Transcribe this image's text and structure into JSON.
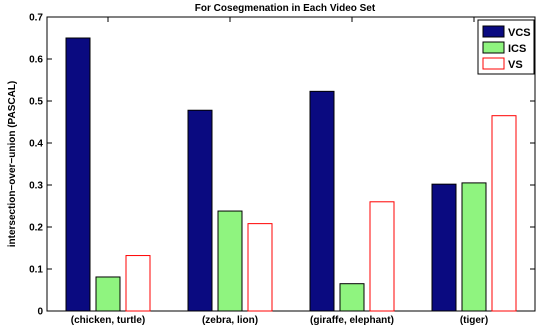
{
  "chart_data": {
    "type": "bar",
    "title": "For Cosegmenation in Each Video Set",
    "ylabel": "intersection−over−union (PASCAL)",
    "xlabel": "",
    "categories": [
      "(chicken, turtle)",
      "(zebra, lion)",
      "(giraffe, elephant)",
      "(tiger)"
    ],
    "series": [
      {
        "name": "VCS",
        "values": [
          0.65,
          0.478,
          0.523,
          0.302
        ],
        "color": "#0a0a80",
        "fill": true
      },
      {
        "name": "ICS",
        "values": [
          0.081,
          0.238,
          0.065,
          0.305
        ],
        "color": "#8ff47f",
        "fill": true
      },
      {
        "name": "VS",
        "values": [
          0.132,
          0.208,
          0.26,
          0.465
        ],
        "color": "#ff0000",
        "fill": false
      }
    ],
    "ylim": [
      0,
      0.7
    ],
    "yticks": [
      "0",
      "0.1",
      "0.2",
      "0.3",
      "0.4",
      "0.5",
      "0.6",
      "0.7"
    ],
    "grid": false,
    "legend_position": "top-right"
  }
}
